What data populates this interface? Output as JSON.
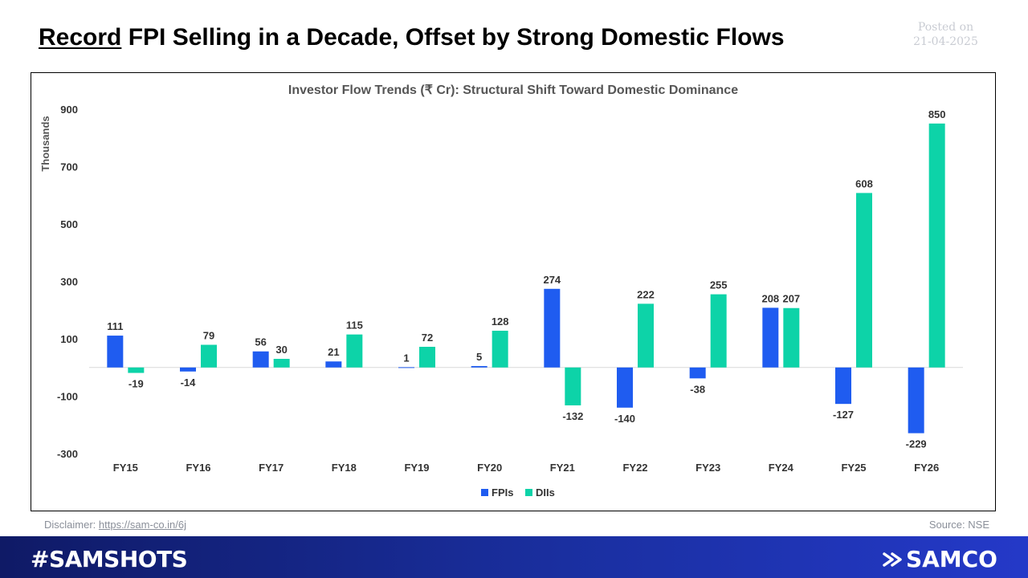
{
  "header": {
    "title_underlined": "Record",
    "title_rest": " FPI Selling in a Decade, Offset by Strong Domestic Flows",
    "posted_label": "Posted on",
    "posted_date": "21-04-2025"
  },
  "footer": {
    "disclaimer_label": "Disclaimer: ",
    "disclaimer_link": "https://sam-co.in/6j",
    "source": "Source: NSE"
  },
  "banner": {
    "hashtag": "#SAMSHOTS",
    "brand": "SAMCO",
    "brand_icon": "samco-logo-icon"
  },
  "colors": {
    "fpi": "#1f5cf0",
    "dii": "#0dd3a8",
    "banner": "#1a2fa0"
  },
  "chart_data": {
    "type": "bar",
    "title": "Investor Flow Trends (₹ Cr): Structural Shift Toward Domestic Dominance",
    "ylabel": "Thousands",
    "xlabel": "",
    "ylim": [
      -300,
      900
    ],
    "yticks": [
      -300,
      -100,
      100,
      300,
      500,
      700,
      900
    ],
    "categories": [
      "FY15",
      "FY16",
      "FY17",
      "FY18",
      "FY19",
      "FY20",
      "FY21",
      "FY22",
      "FY23",
      "FY24",
      "FY25",
      "FY26"
    ],
    "series": [
      {
        "name": "FPIs",
        "values": [
          111,
          -14,
          56,
          21,
          1,
          5,
          274,
          -140,
          -38,
          208,
          -127,
          -229
        ]
      },
      {
        "name": "DIIs",
        "values": [
          -19,
          79,
          30,
          115,
          72,
          128,
          -132,
          222,
          255,
          207,
          608,
          850
        ]
      }
    ],
    "legend": "bottom",
    "grid": false
  }
}
